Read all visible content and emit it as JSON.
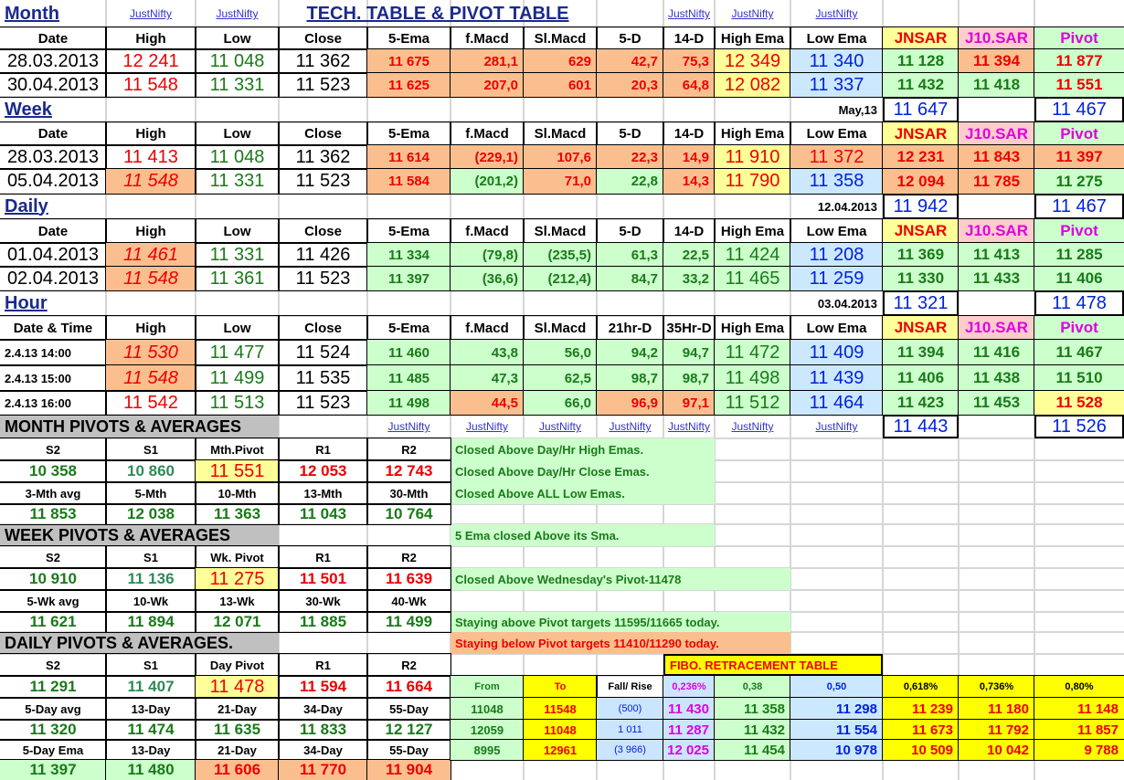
{
  "links": {
    "justnifty": "JustNifty"
  },
  "title": "TECH. TABLE   &  PIVOT TABLE",
  "sections": {
    "month": "Month",
    "week": "Week",
    "daily": "Daily",
    "hour": "Hour"
  },
  "headers": {
    "date": "Date",
    "date_time": "Date & Time",
    "high": "High",
    "low": "Low",
    "close": "Close",
    "ema5": "5-Ema",
    "fmacd": "f.Macd",
    "slmacd": "Sl.Macd",
    "d5": "5-D",
    "d14": "14-D",
    "hr21": "21hr-D",
    "hr35": "35Hr-D",
    "high_ema": "High Ema",
    "low_ema": "Low Ema",
    "jnsar": "JNSAR",
    "j10sar": "J10.SAR",
    "pivot": "Pivot"
  },
  "month": {
    "rows": [
      {
        "date": "28.03.2013",
        "high": "12 241",
        "low": "11 048",
        "close": "11 362",
        "ema5": "11 675",
        "fmacd": "281,1",
        "slmacd": "629",
        "d5": "42,7",
        "d14": "75,3",
        "high_ema": "12 349",
        "low_ema": "11 340",
        "jnsar": "11 128",
        "j10sar": "11 394",
        "pivot": "11 877"
      },
      {
        "date": "30.04.2013",
        "high": "11 548",
        "low": "11 331",
        "close": "11 523",
        "ema5": "11 625",
        "fmacd": "207,0",
        "slmacd": "601",
        "d5": "20,3",
        "d14": "64,8",
        "high_ema": "12 082",
        "low_ema": "11 337",
        "jnsar": "11 432",
        "j10sar": "11 418",
        "pivot": "11 551"
      }
    ],
    "footer": {
      "label": "May,13",
      "jnsar": "11 647",
      "pivot": "11 467"
    }
  },
  "week": {
    "rows": [
      {
        "date": "28.03.2013",
        "high": "11 413",
        "low": "11 048",
        "close": "11 362",
        "ema5": "11 614",
        "fmacd": "(229,1)",
        "slmacd": "107,6",
        "d5": "22,3",
        "d14": "14,9",
        "high_ema": "11 910",
        "low_ema": "11 372",
        "jnsar": "12 231",
        "j10sar": "11 843",
        "pivot": "11 397"
      },
      {
        "date": "05.04.2013",
        "high": "11 548",
        "low": "11 331",
        "close": "11 523",
        "ema5": "11 584",
        "fmacd": "(201,2)",
        "slmacd": "71,0",
        "d5": "22,8",
        "d14": "14,3",
        "high_ema": "11 790",
        "low_ema": "11 358",
        "jnsar": "12 094",
        "j10sar": "11 785",
        "pivot": "11 275"
      }
    ],
    "footer": {
      "label": "12.04.2013",
      "jnsar": "11 942",
      "pivot": "11 467"
    }
  },
  "daily": {
    "rows": [
      {
        "date": "01.04.2013",
        "high": "11 461",
        "low": "11 331",
        "close": "11 426",
        "ema5": "11 334",
        "fmacd": "(79,8)",
        "slmacd": "(235,5)",
        "d5": "61,3",
        "d14": "22,5",
        "high_ema": "11 424",
        "low_ema": "11 208",
        "jnsar": "11 369",
        "j10sar": "11 413",
        "pivot": "11 285"
      },
      {
        "date": "02.04.2013",
        "high": "11 548",
        "low": "11 361",
        "close": "11 523",
        "ema5": "11 397",
        "fmacd": "(36,6)",
        "slmacd": "(212,4)",
        "d5": "84,7",
        "d14": "33,2",
        "high_ema": "11 465",
        "low_ema": "11 259",
        "jnsar": "11 330",
        "j10sar": "11 433",
        "pivot": "11 406"
      }
    ],
    "footer": {
      "label": "03.04.2013",
      "jnsar": "11 321",
      "pivot": "11 478"
    }
  },
  "hour": {
    "rows": [
      {
        "date": "2.4.13 14:00",
        "high": "11 530",
        "low": "11 477",
        "close": "11 524",
        "ema5": "11 460",
        "fmacd": "43,8",
        "slmacd": "56,0",
        "d5": "94,2",
        "d14": "94,7",
        "high_ema": "11 472",
        "low_ema": "11 409",
        "jnsar": "11 394",
        "j10sar": "11 416",
        "pivot": "11 467"
      },
      {
        "date": "2.4.13 15:00",
        "high": "11 548",
        "low": "11 499",
        "close": "11 535",
        "ema5": "11 485",
        "fmacd": "47,3",
        "slmacd": "62,5",
        "d5": "98,7",
        "d14": "98,7",
        "high_ema": "11 498",
        "low_ema": "11 439",
        "jnsar": "11 406",
        "j10sar": "11 438",
        "pivot": "11 510"
      },
      {
        "date": "2.4.13 16:00",
        "high": "11 542",
        "low": "11 513",
        "close": "11 523",
        "ema5": "11 498",
        "fmacd": "44,5",
        "slmacd": "66,0",
        "d5": "96,9",
        "d14": "97,1",
        "high_ema": "11 512",
        "low_ema": "11 464",
        "jnsar": "11 423",
        "j10sar": "11 453",
        "pivot": "11 528"
      }
    ],
    "footer": {
      "jnsar": "11 443",
      "pivot": "11 526"
    }
  },
  "pivots": {
    "month_title": "MONTH  PIVOTS  &  AVERAGES",
    "week_title": "WEEK  PIVOTS  &  AVERAGES",
    "daily_title": "DAILY  PIVOTS  &  AVERAGES.",
    "s2": "S2",
    "s1": "S1",
    "r1": "R1",
    "r2": "R2",
    "mth_pivot": "Mth.Pivot",
    "wk_pivot": "Wk. Pivot",
    "day_pivot": "Day  Pivot",
    "month_vals": [
      "10 358",
      "10 860",
      "11 551",
      "12 053",
      "12 743"
    ],
    "month_avg_labels": [
      "3-Mth avg",
      "5-Mth",
      "10-Mth",
      "13-Mth",
      "30-Mth"
    ],
    "month_avg_vals": [
      "11 853",
      "12 038",
      "11 363",
      "11 043",
      "10 764"
    ],
    "week_vals": [
      "10 910",
      "11 136",
      "11 275",
      "11 501",
      "11 639"
    ],
    "week_avg_labels": [
      "5-Wk avg",
      "10-Wk",
      "13-Wk",
      "30-Wk",
      "40-Wk"
    ],
    "week_avg_vals": [
      "11 621",
      "11 894",
      "12 071",
      "11 885",
      "11 499"
    ],
    "daily_vals": [
      "11 291",
      "11 407",
      "11 478",
      "11 594",
      "11 664"
    ],
    "daily_avg_labels": [
      "5-Day avg",
      "13-Day",
      "21-Day",
      "34-Day",
      "55-Day"
    ],
    "daily_avg_vals": [
      "11 320",
      "11 474",
      "11 635",
      "11 833",
      "12 127"
    ],
    "daily_ema_labels": [
      "5-Day Ema",
      "13-Day",
      "21-Day",
      "34-Day",
      "55-Day"
    ],
    "daily_ema_vals": [
      "11 397",
      "11 480",
      "11 606",
      "11 770",
      "11 904"
    ]
  },
  "notes": [
    "Closed Above Day/Hr High Emas.",
    "Closed Above Day/Hr Close Emas.",
    "Closed Above ALL Low Emas.",
    "5 Ema closed Above its Sma.",
    "Closed Above Wednesday's Pivot-11478",
    "Staying above Pivot targets 11595/11665 today.",
    "Staying below Pivot targets 11410/11290 today."
  ],
  "fibo": {
    "title": "FIBO. RETRACEMENT TABLE",
    "headers": [
      "From",
      "To",
      "Fall/ Rise",
      "0,236%",
      "0,38",
      "0,50",
      "0,618%",
      "0,736%",
      "0,80%"
    ],
    "rows": [
      [
        "11048",
        "11548",
        "(500)",
        "11 430",
        "11 358",
        "11 298",
        "11 239",
        "11 180",
        "11 148"
      ],
      [
        "12059",
        "11048",
        "1 011",
        "11 287",
        "11 432",
        "11 554",
        "11 673",
        "11 792",
        "11 857"
      ],
      [
        "8995",
        "12961",
        "(3 966)",
        "12 025",
        "11 454",
        "10 978",
        "10 509",
        "10 042",
        "9 788"
      ]
    ]
  }
}
